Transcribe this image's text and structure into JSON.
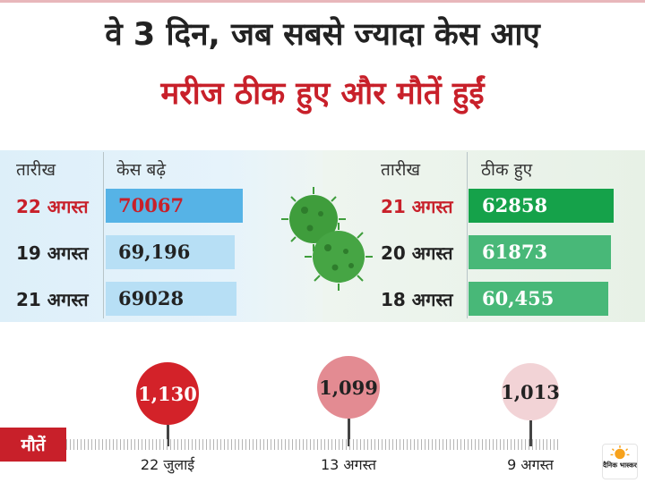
{
  "title": {
    "line1": "वे 3 दिन, जब सबसे ज्यादा केस आए",
    "line2": "मरीज ठीक हुए और मौतें हुईं"
  },
  "cases": {
    "date_header": "तारीख",
    "value_header": "केस बढ़े",
    "rows": [
      {
        "date": "22 अगस्त",
        "value": "70067",
        "highlight": true
      },
      {
        "date": "19 अगस्त",
        "value": "69,196",
        "highlight": false
      },
      {
        "date": "21 अगस्त",
        "value": "69028",
        "highlight": false
      }
    ]
  },
  "recoveries": {
    "date_header": "तारीख",
    "value_header": "ठीक हुए",
    "rows": [
      {
        "date": "21 अगस्त",
        "value": "62858",
        "highlight": true
      },
      {
        "date": "20 अगस्त",
        "value": "61873",
        "highlight": false
      },
      {
        "date": "18 अगस्त",
        "value": "60,455",
        "highlight": false
      }
    ]
  },
  "deaths": {
    "label": "मौतें",
    "points": [
      {
        "value": "1,130",
        "date": "22 जुलाई"
      },
      {
        "value": "1,099",
        "date": "13 अगस्त"
      },
      {
        "value": "1,013",
        "date": "9 अगस्त"
      }
    ]
  },
  "colors": {
    "accent_red": "#c8202a",
    "cases_bar_top": "#56b3e6",
    "cases_bar": "#b7dff5",
    "recovery_bar_top": "#15a24a",
    "recovery_bar": "#48b878",
    "death_1": "#d32229",
    "death_2": "#e38b92",
    "death_3": "#f2d3d6",
    "virus": "#3f9d3c"
  },
  "icons": [
    "virus-icon",
    "dainik-bhaskar-logo"
  ],
  "logo_text": "दैनिक भास्कर"
}
